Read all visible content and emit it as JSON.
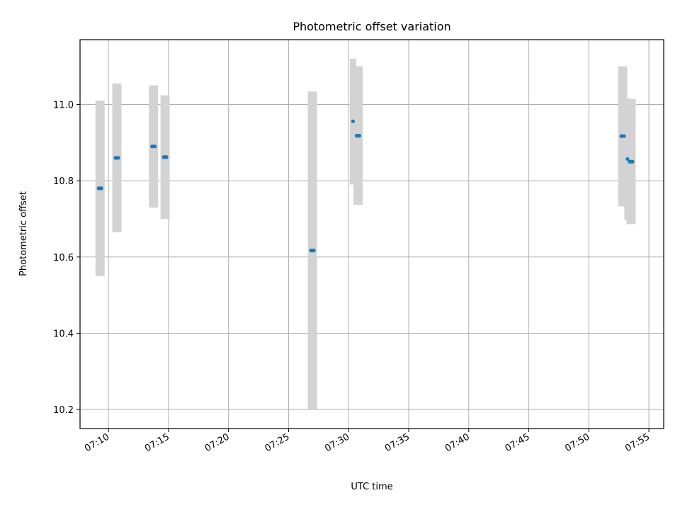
{
  "chart_data": {
    "type": "scatter",
    "title": "Photometric offset variation",
    "xlabel": "UTC time",
    "ylabel": "Photometric offset",
    "x_unit": "UTC time of day (HH:MM:SS)",
    "xlim": [
      "07:07:38",
      "07:56:14"
    ],
    "ylim": [
      10.15,
      11.17
    ],
    "grid": true,
    "x_ticks": [
      "07:10",
      "07:15",
      "07:20",
      "07:25",
      "07:30",
      "07:35",
      "07:40",
      "07:45",
      "07:50",
      "07:55"
    ],
    "y_ticks": [
      10.2,
      10.4,
      10.6,
      10.8,
      11.0
    ],
    "y_tick_labels": [
      "10.2",
      "10.4",
      "10.6",
      "10.8",
      "11.0"
    ],
    "colors": {
      "points": "#1f77b4",
      "error_bars": "#d3d3d3",
      "grid": "#b0b0b0"
    },
    "series": [
      {
        "points": [
          {
            "x": "07:09:11",
            "y": 10.78,
            "ylow": 10.55,
            "yhigh": 11.01
          },
          {
            "x": "07:09:18",
            "y": 10.78,
            "ylow": 10.55,
            "yhigh": 11.01
          },
          {
            "x": "07:09:25",
            "y": 10.78,
            "ylow": 10.55,
            "yhigh": 11.01
          },
          {
            "x": "07:10:35",
            "y": 10.86,
            "ylow": 10.665,
            "yhigh": 11.055
          },
          {
            "x": "07:10:42",
            "y": 10.86,
            "ylow": 10.665,
            "yhigh": 11.055
          },
          {
            "x": "07:10:49",
            "y": 10.86,
            "ylow": 10.665,
            "yhigh": 11.055
          },
          {
            "x": "07:13:38",
            "y": 10.89,
            "ylow": 10.73,
            "yhigh": 11.05
          },
          {
            "x": "07:13:45",
            "y": 10.89,
            "ylow": 10.73,
            "yhigh": 11.05
          },
          {
            "x": "07:13:52",
            "y": 10.89,
            "ylow": 10.73,
            "yhigh": 11.05
          },
          {
            "x": "07:14:36",
            "y": 10.862,
            "ylow": 10.7,
            "yhigh": 11.024
          },
          {
            "x": "07:14:43",
            "y": 10.862,
            "ylow": 10.7,
            "yhigh": 11.024
          },
          {
            "x": "07:14:50",
            "y": 10.862,
            "ylow": 10.7,
            "yhigh": 11.024
          },
          {
            "x": "07:26:52",
            "y": 10.617,
            "ylow": 10.2,
            "yhigh": 11.034
          },
          {
            "x": "07:26:59",
            "y": 10.617,
            "ylow": 10.2,
            "yhigh": 11.034
          },
          {
            "x": "07:27:06",
            "y": 10.617,
            "ylow": 10.2,
            "yhigh": 11.034
          },
          {
            "x": "07:30:22",
            "y": 10.956,
            "ylow": 10.79,
            "yhigh": 11.12
          },
          {
            "x": "07:30:40",
            "y": 10.918,
            "ylow": 10.737,
            "yhigh": 11.1
          },
          {
            "x": "07:30:47",
            "y": 10.918,
            "ylow": 10.737,
            "yhigh": 11.1
          },
          {
            "x": "07:30:54",
            "y": 10.918,
            "ylow": 10.737,
            "yhigh": 11.1
          },
          {
            "x": "07:52:42",
            "y": 10.917,
            "ylow": 10.733,
            "yhigh": 11.1
          },
          {
            "x": "07:52:49",
            "y": 10.917,
            "ylow": 10.733,
            "yhigh": 11.1
          },
          {
            "x": "07:52:56",
            "y": 10.917,
            "ylow": 10.733,
            "yhigh": 11.1
          },
          {
            "x": "07:53:13",
            "y": 10.857,
            "ylow": 10.698,
            "yhigh": 11.016
          },
          {
            "x": "07:53:24",
            "y": 10.85,
            "ylow": 10.686,
            "yhigh": 11.014
          },
          {
            "x": "07:53:31",
            "y": 10.85,
            "ylow": 10.686,
            "yhigh": 11.014
          },
          {
            "x": "07:53:38",
            "y": 10.85,
            "ylow": 10.686,
            "yhigh": 11.014
          }
        ]
      }
    ]
  }
}
